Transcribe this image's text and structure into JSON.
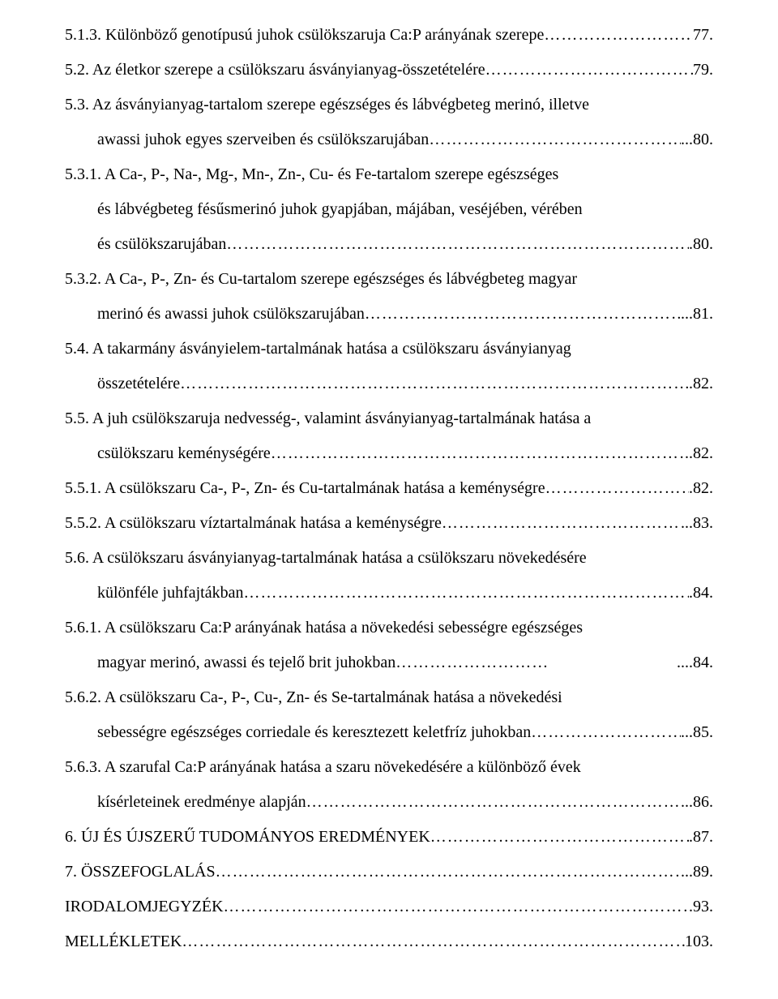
{
  "toc": [
    {
      "num": "5.1.3.",
      "text": "Különböző genotípusú juhok csülökszaruja Ca:P arányának szerepe",
      "page": "77.",
      "indent": 0
    },
    {
      "num": "5.2.",
      "text": "Az életkor szerepe a csülökszaru ásványianyag-összetételére",
      "page": "79.",
      "indent": 0
    },
    {
      "num": "5.3.",
      "text": "Az ásványianyag-tartalom szerepe egészséges és lábvégbeteg merinó, illetve",
      "indent": 0,
      "nowrap": true
    },
    {
      "text": "awassi juhok egyes szerveiben és csülökszarujában",
      "page": "...80.",
      "indent": 1
    },
    {
      "num": "5.3.1.",
      "text": "A Ca-, P-, Na-, Mg-, Mn-, Zn-, Cu- és Fe-tartalom szerepe egészséges",
      "indent": 0,
      "nowrap": true
    },
    {
      "text": "és lábvégbeteg fésűsmerinó juhok gyapjában, májában, veséjében, vérében",
      "indent": 1,
      "nowrap": true
    },
    {
      "text": "és csülökszarujában",
      "page": ".80.",
      "indent": 1
    },
    {
      "num": "5.3.2.",
      "text": "A Ca-, P-, Zn- és Cu-tartalom szerepe egészséges és lábvégbeteg magyar",
      "indent": 0,
      "nowrap": true
    },
    {
      "text": "merinó és awassi juhok csülökszarujában",
      "page": "...81.",
      "indent": 1
    },
    {
      "num": "5.4.",
      "text": "A takarmány ásványielem-tartalmának hatása a csülökszaru ásványianyag",
      "indent": 0,
      "nowrap": true
    },
    {
      "text": "összetételére",
      "page": ".82.",
      "indent": 1
    },
    {
      "num": "5.5.",
      "text": "A juh csülökszaruja nedvesség-, valamint ásványianyag-tartalmának hatása a",
      "indent": 0,
      "nowrap": true
    },
    {
      "text": "csülökszaru keménységére",
      "page": "..82.",
      "indent": 1
    },
    {
      "num": "5.5.1.",
      "text": "A csülökszaru Ca-, P-, Zn- és Cu-tartalmának hatása a keménységre",
      "page": ".82.",
      "indent": 0
    },
    {
      "num": "5.5.2.",
      "text": "A csülökszaru víztartalmának hatása a keménységre",
      "page": "...83.",
      "indent": 0
    },
    {
      "num": "5.6.",
      "text": "A csülökszaru ásványianyag-tartalmának hatása a csülökszaru növekedésére",
      "indent": 0,
      "nowrap": true
    },
    {
      "text": "különféle juhfajtákban",
      "page": ".84.",
      "indent": 1
    },
    {
      "num": "5.6.1.",
      "text": "A csülökszaru Ca:P arányának hatása a növekedési sebességre egészséges",
      "indent": 0,
      "nowrap": true
    },
    {
      "text": "magyar merinó, awassi és tejelő brit juhokban",
      "page": "....84.",
      "indent": 1,
      "shortdots": true
    },
    {
      "num": "5.6.2.",
      "text": "A csülökszaru Ca-, P-, Cu-, Zn- és Se-tartalmának hatása a növekedési",
      "indent": 0,
      "nowrap": true
    },
    {
      "text": "sebességre egészséges corriedale és keresztezett keletfríz juhokban",
      "page": "...85.",
      "indent": 1
    },
    {
      "num": "5.6.3.",
      "text": "A szarufal Ca:P arányának hatása a szaru növekedésére a különböző évek",
      "indent": 0,
      "nowrap": true
    },
    {
      "text": "kísérleteinek eredménye alapján",
      "page": "...86.",
      "indent": 1
    },
    {
      "num": "6.",
      "text": "ÚJ ÉS ÚJSZERŰ TUDOMÁNYOS EREDMÉNYEK",
      "page": ".87.",
      "indent": 0
    },
    {
      "num": "7.",
      "text": "ÖSSZEFOGLALÁS",
      "page": "...89.",
      "indent": 0
    },
    {
      "text": "IRODALOMJEGYZÉK",
      "page": ".93.",
      "indent": 0
    },
    {
      "text": "MELLÉKLETEK",
      "page": "103.",
      "indent": 0
    }
  ]
}
